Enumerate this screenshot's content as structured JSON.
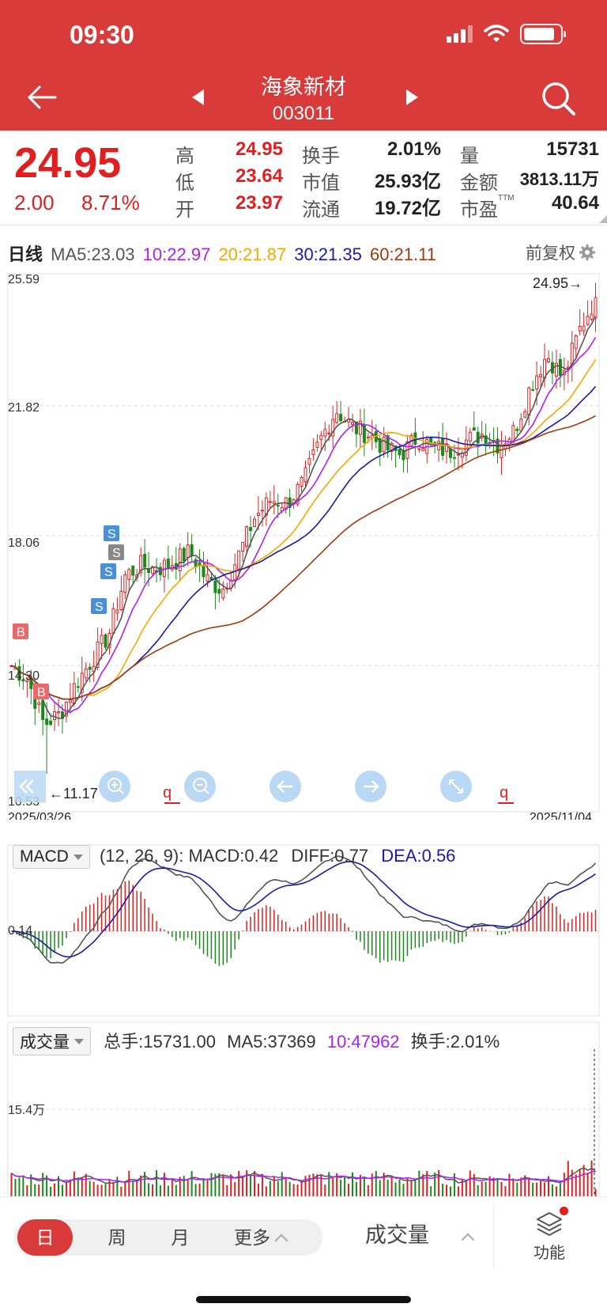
{
  "status": {
    "time": "09:30"
  },
  "header": {
    "name": "海象新材",
    "code": "003011"
  },
  "quote": {
    "price": "24.95",
    "change": "2.00",
    "change_pct": "8.71%",
    "high_label": "高",
    "high": "24.95",
    "low_label": "低",
    "low": "23.64",
    "open_label": "开",
    "open": "23.97",
    "turnover_label": "换手",
    "turnover": "2.01%",
    "mktcap_label": "市值",
    "mktcap": "25.93亿",
    "float_label": "流通",
    "float": "19.72亿",
    "volume_label": "量",
    "volume": "15731",
    "amount_label": "金额",
    "amount": "3813.11万",
    "pe_label": "市盈",
    "pe_sup": "TTM",
    "pe": "40.64"
  },
  "kline": {
    "period_label": "日线",
    "ma5": "MA5:23.03",
    "ma10": "10:22.97",
    "ma20": "20:21.87",
    "ma30": "30:21.35",
    "ma60": "60:21.11",
    "adjust_label": "前复权",
    "y_labels": [
      "25.59",
      "21.82",
      "18.06",
      "14.30",
      "10.53"
    ],
    "high_marker": "24.95→",
    "low_marker": "←11.17",
    "start_date": "2025/03/26",
    "end_date": "2025/11/04",
    "colors": {
      "up": "#e02020",
      "down": "#1a8a1a",
      "ma5": "#555555",
      "ma10": "#b020f0",
      "ma20": "#f5a800",
      "ma30": "#1a1aa8",
      "ma60": "#a03a10"
    }
  },
  "macd": {
    "select_label": "MACD",
    "params": "(12, 26, 9): MACD:0.42",
    "diff": "DIFF:0.77",
    "dea": "DEA:0.56",
    "y_label": "0.14"
  },
  "volume": {
    "select_label": "成交量",
    "total": "总手:15731.00",
    "ma5": "MA5:37369",
    "ma10": "10:47962",
    "turnover": "换手:2.01%",
    "y_label": "15.4万"
  },
  "bottom": {
    "periods": [
      "日",
      "周",
      "月",
      "更多"
    ],
    "indicator": "成交量",
    "func_label": "功能"
  },
  "chart_data": {
    "type": "candlestick",
    "title": "日线",
    "x": [
      "2025/03/26",
      "2025/11/04"
    ],
    "ylim": [
      10.53,
      25.59
    ],
    "close_points": [
      14.3,
      13.9,
      12.6,
      12.9,
      13.8,
      14.5,
      15.2,
      16.9,
      17.2,
      17.1,
      17.3,
      17.6,
      16.8,
      16.5,
      17.5,
      18.6,
      19.1,
      19.0,
      19.6,
      20.8,
      21.7,
      21.2,
      21.0,
      20.6,
      20.4,
      20.9,
      20.6,
      20.5,
      20.8,
      21.0,
      20.7,
      21.1,
      22.4,
      23.3,
      22.6,
      24.0,
      24.95
    ],
    "series": [
      {
        "name": "MA5",
        "last": 23.03
      },
      {
        "name": "MA10",
        "last": 22.97
      },
      {
        "name": "MA20",
        "last": 21.87
      },
      {
        "name": "MA30",
        "last": 21.35
      },
      {
        "name": "MA60",
        "last": 21.11
      }
    ],
    "high": 24.95,
    "low": 11.17
  }
}
